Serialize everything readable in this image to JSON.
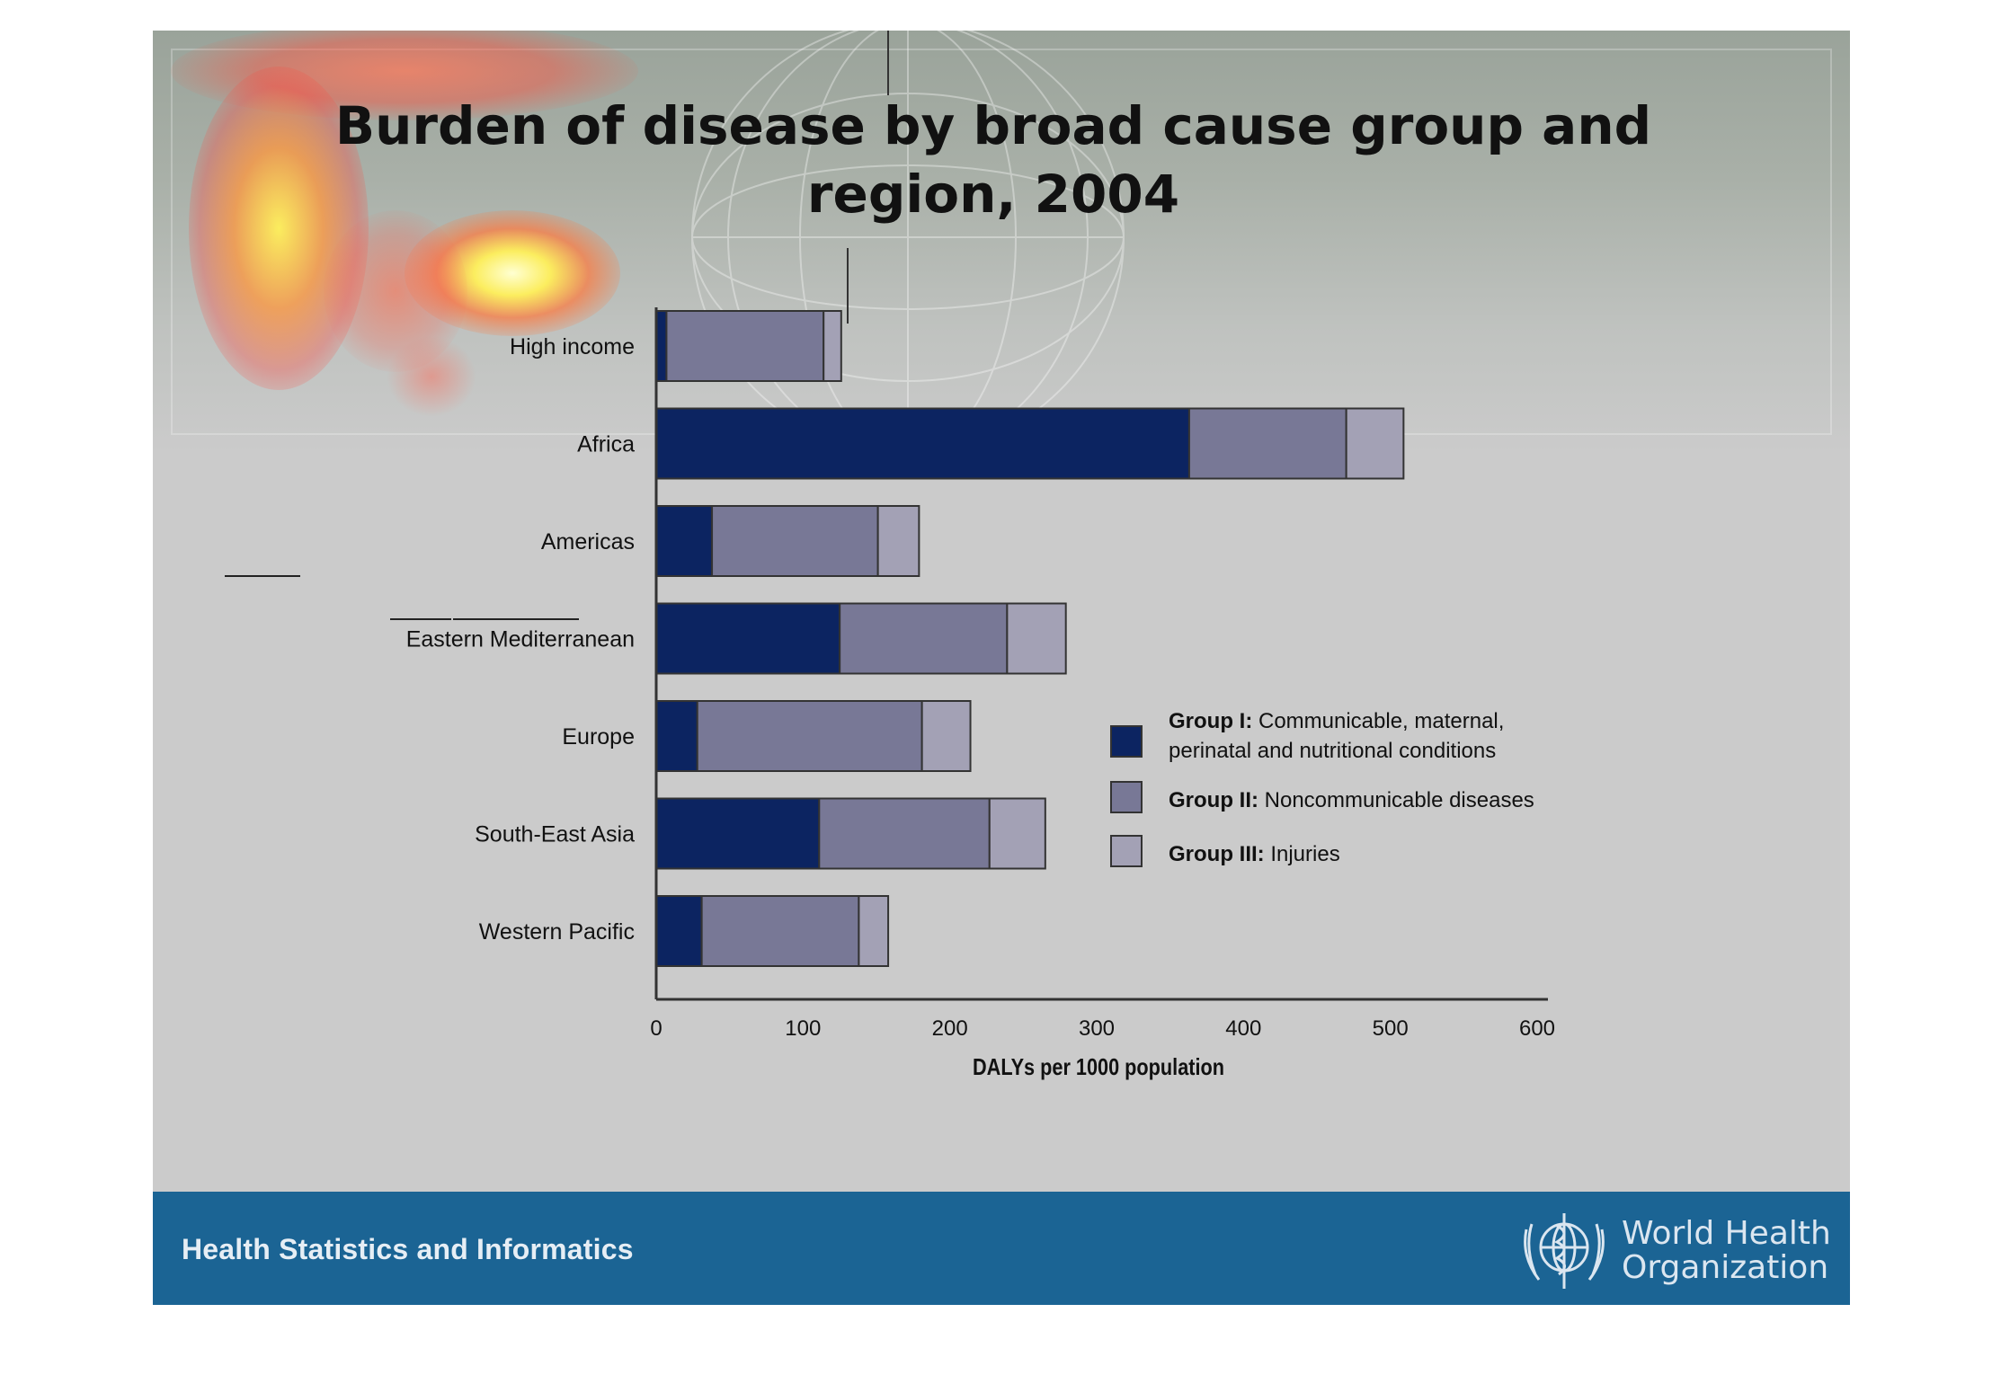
{
  "title_line1": "Burden of disease by broad cause group and",
  "title_line2": "region, 2004",
  "footer_text": "Health Statistics and Informatics",
  "org_name_line1": "World Health",
  "org_name_line2": "Organization",
  "colors": {
    "group1": "#0c2461",
    "group2": "#787896",
    "group3": "#a3a1b5",
    "footer": "#1b6494",
    "slide_bg": "#cbcbcb"
  },
  "chart_data": {
    "type": "bar",
    "orientation": "horizontal",
    "stacked": true,
    "title": "Burden of disease by broad cause group and region, 2004",
    "xlabel": "DALYs per 1000 population",
    "ylabel": "",
    "xlim": [
      0,
      600
    ],
    "xticks": [
      "0",
      "100",
      "200",
      "300",
      "400",
      "500",
      "600"
    ],
    "categories": [
      "High income",
      "Africa",
      "Americas",
      "Eastern Mediterranean",
      "Europe",
      "South-East Asia",
      "Western Pacific"
    ],
    "series": [
      {
        "name": "Group I: Communicable, maternal, perinatal and nutritional conditions",
        "values": [
          7,
          363,
          38,
          125,
          28,
          111,
          31
        ]
      },
      {
        "name": "Group II: Noncommunicable diseases",
        "values": [
          107,
          107,
          113,
          114,
          153,
          116,
          107
        ]
      },
      {
        "name": "Group III: Injuries",
        "values": [
          12,
          39,
          28,
          40,
          33,
          38,
          20
        ]
      }
    ],
    "legend": {
      "placement": "right",
      "entries": [
        {
          "bold": "Group I:",
          "text1": "Communicable, maternal,",
          "text2": "perinatal and nutritional conditions"
        },
        {
          "bold": "Group II:",
          "text1": "Noncommunicable diseases",
          "text2": ""
        },
        {
          "bold": "Group III:",
          "text1": "Injuries",
          "text2": ""
        }
      ]
    },
    "grid": false
  }
}
